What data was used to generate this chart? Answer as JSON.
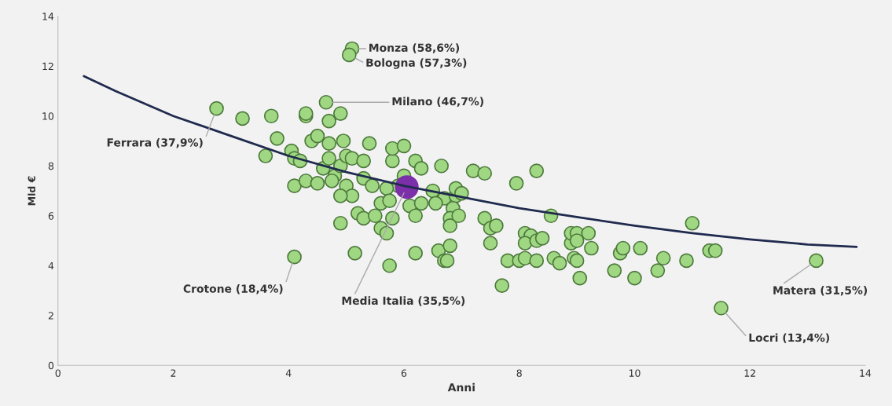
{
  "chart_data": {
    "type": "scatter",
    "xlabel": "Anni",
    "ylabel": "Mld €",
    "xlim": [
      0,
      14
    ],
    "ylim": [
      0,
      14
    ],
    "xticks": [
      0,
      2,
      4,
      6,
      8,
      10,
      12,
      14
    ],
    "yticks": [
      0,
      2,
      4,
      6,
      8,
      10,
      12,
      14
    ],
    "grid": false,
    "legend": false,
    "series": [
      {
        "color": "#9fd782",
        "marker": "circle",
        "x": [
          2.75,
          3.2,
          3.7,
          3.8,
          3.6,
          4.05,
          4.1,
          4.2,
          4.1,
          4.3,
          4.5,
          4.3,
          4.3,
          4.4,
          4.5,
          4.7,
          4.9,
          4.7,
          4.95,
          4.6,
          4.7,
          4.8,
          4.75,
          4.9,
          5.0,
          5.1,
          5.3,
          5.4,
          5.3,
          5.45,
          5.0,
          5.1,
          4.9,
          4.9,
          5.2,
          5.3,
          5.5,
          5.6,
          5.6,
          5.7,
          5.8,
          5.75,
          5.15,
          4.1,
          5.8,
          5.8,
          6.0,
          6.2,
          6.3,
          6.0,
          5.9,
          5.7,
          5.75,
          6.1,
          6.2,
          6.3,
          6.5,
          6.7,
          6.65,
          6.9,
          6.9,
          7.0,
          7.2,
          7.4,
          6.85,
          6.8,
          6.8,
          6.95,
          6.55,
          6.2,
          6.6,
          6.7,
          6.75,
          6.8,
          7.4,
          7.5,
          7.6,
          7.5,
          7.7,
          7.8,
          8.0,
          7.95,
          8.3,
          8.1,
          8.2,
          8.1,
          8.3,
          8.4,
          8.1,
          8.3,
          8.55,
          8.6,
          8.7,
          8.9,
          8.9,
          9.0,
          9.2,
          9.0,
          9.25,
          8.95,
          9.0,
          9.05,
          9.65,
          9.75,
          9.8,
          10.0,
          10.1,
          10.4,
          10.5,
          10.9,
          11.0,
          11.3,
          11.4,
          13.15,
          11.5,
          5.1,
          5.05,
          4.65
        ],
        "values": [
          10.3,
          9.9,
          10.0,
          9.1,
          8.4,
          8.6,
          8.3,
          8.2,
          7.2,
          7.4,
          7.3,
          10.0,
          10.1,
          9.0,
          9.2,
          9.8,
          10.1,
          8.9,
          9.0,
          7.9,
          8.3,
          7.6,
          7.4,
          8.0,
          8.4,
          8.3,
          8.2,
          8.9,
          7.5,
          7.2,
          7.2,
          6.8,
          6.8,
          5.7,
          6.1,
          5.9,
          6.0,
          6.5,
          5.5,
          5.3,
          5.9,
          4.0,
          4.5,
          4.35,
          8.2,
          8.7,
          8.8,
          8.2,
          7.9,
          7.6,
          7.2,
          7.1,
          6.6,
          6.4,
          6.0,
          6.5,
          7.0,
          6.7,
          8.0,
          6.8,
          7.1,
          6.9,
          7.8,
          7.7,
          6.3,
          5.9,
          5.6,
          6.0,
          6.5,
          4.5,
          4.6,
          4.2,
          4.2,
          4.8,
          5.9,
          5.5,
          5.6,
          4.9,
          3.2,
          4.2,
          4.2,
          7.3,
          7.8,
          5.3,
          5.2,
          4.9,
          5.0,
          5.1,
          4.3,
          4.2,
          6.0,
          4.3,
          4.1,
          4.9,
          5.3,
          5.3,
          5.3,
          5.0,
          4.7,
          4.3,
          4.2,
          3.5,
          3.8,
          4.5,
          4.7,
          3.5,
          4.7,
          3.8,
          4.3,
          4.2,
          5.7,
          4.6,
          4.6,
          4.2,
          2.3,
          12.7,
          12.45,
          10.55
        ]
      },
      {
        "color": "#7b2fa8",
        "marker": "circle",
        "x": [
          6.05
        ],
        "values": [
          7.15
        ]
      },
      {
        "type": "line",
        "color": "#1f2a4e",
        "marker": "none",
        "x": [
          0.45,
          1,
          2,
          3,
          4,
          5,
          6,
          7,
          8,
          9,
          10,
          11,
          12,
          13,
          13.85
        ],
        "values": [
          11.6,
          11.0,
          10.0,
          9.2,
          8.4,
          7.75,
          7.2,
          6.75,
          6.3,
          5.95,
          5.6,
          5.3,
          5.05,
          4.85,
          4.75
        ]
      }
    ],
    "annotations": [
      {
        "text": "Monza (58,6%)",
        "x": 5.1,
        "y": 12.7
      },
      {
        "text": "Bologna (57,3%)",
        "x": 5.05,
        "y": 12.45
      },
      {
        "text": "Milano (46,7%)",
        "x": 4.65,
        "y": 10.55
      },
      {
        "text": "Ferrara (37,9%)",
        "x": 2.75,
        "y": 10.3
      },
      {
        "text": "Crotone (18,4%)",
        "x": 4.1,
        "y": 4.35
      },
      {
        "text": "Media Italia (35,5%)",
        "x": 6.05,
        "y": 7.15
      },
      {
        "text": "Matera (31,5%)",
        "x": 13.15,
        "y": 4.2
      },
      {
        "text": "Locri (13,4%)",
        "x": 11.5,
        "y": 2.3
      }
    ]
  }
}
